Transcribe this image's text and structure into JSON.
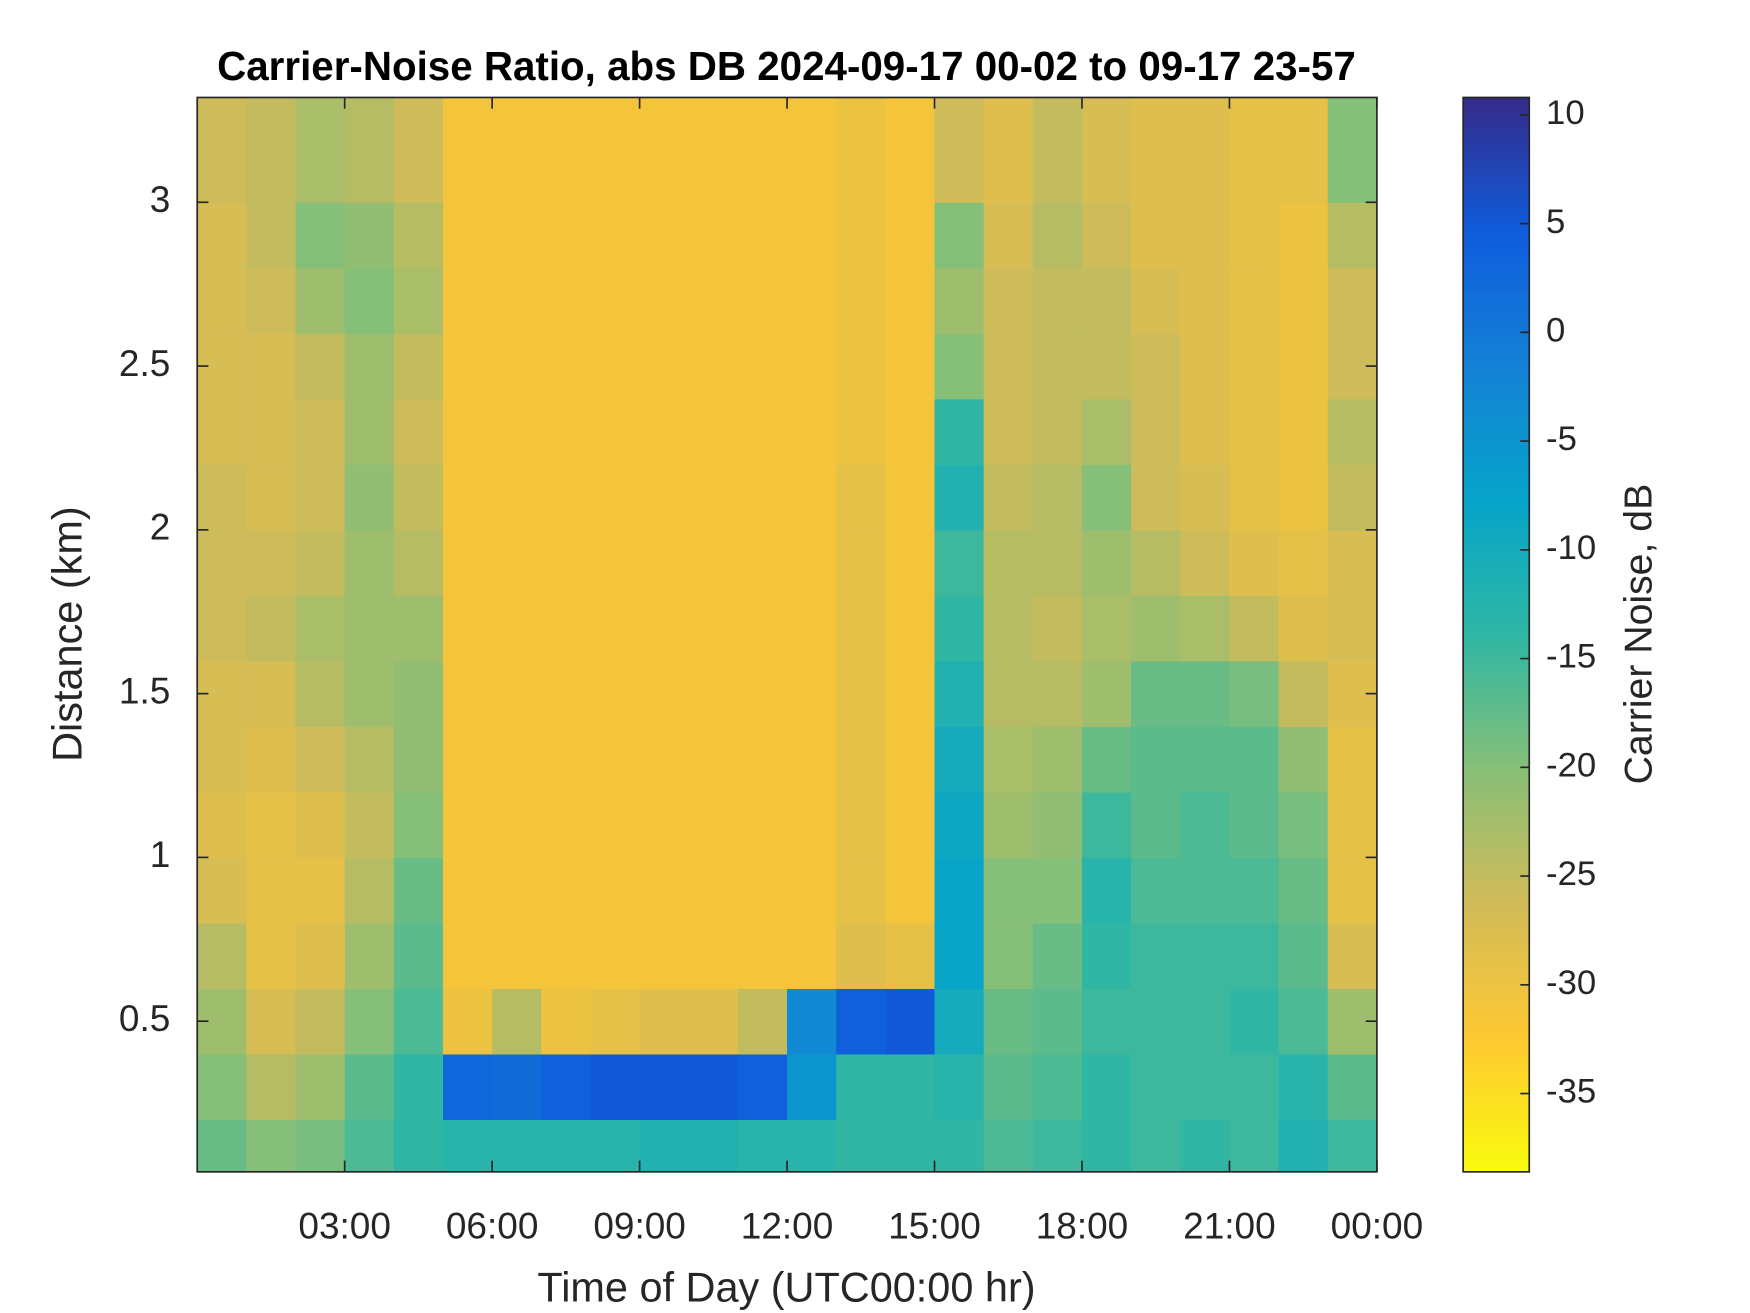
{
  "chart_data": {
    "type": "heatmap",
    "title": "Carrier-Noise Ratio, abs DB 2024-09-17 00-02 to 09-17 23-57",
    "x_label": "Time of Day (UTC00:00 hr)",
    "y_label": "Distance (km)",
    "colorbar_label": "Carrier Noise, dB",
    "xlim": [
      0,
      24
    ],
    "ylim": [
      0.04,
      3.32
    ],
    "clim": [
      -38.6,
      10.8
    ],
    "xticks": [
      {
        "value": 3,
        "label": "03:00"
      },
      {
        "value": 6,
        "label": "06:00"
      },
      {
        "value": 9,
        "label": "09:00"
      },
      {
        "value": 12,
        "label": "12:00"
      },
      {
        "value": 15,
        "label": "15:00"
      },
      {
        "value": 18,
        "label": "18:00"
      },
      {
        "value": 21,
        "label": "21:00"
      },
      {
        "value": 24,
        "label": "00:00"
      }
    ],
    "yticks": [
      0.5,
      1,
      1.5,
      2,
      2.5,
      3
    ],
    "cticks": [
      -35,
      -30,
      -25,
      -20,
      -15,
      -10,
      -5,
      0,
      5,
      10
    ],
    "colormap": [
      "#f9fb0e",
      "#fec832",
      "#d1bb59",
      "#87bf77",
      "#2eb7a4",
      "#06a4ca",
      "#1481d6",
      "#0f5cdd",
      "#352a87"
    ],
    "x_edges": [
      0,
      1,
      2,
      3,
      4,
      5,
      6,
      7,
      8,
      9,
      10,
      11,
      12,
      13,
      14,
      15,
      16,
      17,
      18,
      19,
      20,
      21,
      22,
      23,
      24
    ],
    "y_edges": [
      0.04,
      0.2,
      0.4,
      0.6,
      0.8,
      1.0,
      1.2,
      1.4,
      1.6,
      1.8,
      2.0,
      2.2,
      2.4,
      2.6,
      2.8,
      3.0,
      3.32
    ],
    "z": [
      [
        -18,
        -20,
        -22,
        -24,
        -27,
        -28,
        -27,
        -27,
        -26,
        -26,
        -26,
        -27,
        -27,
        -27,
        -27,
        -26
      ],
      [
        -20,
        -24,
        -27,
        -29,
        -29,
        -29,
        -28,
        -27,
        -25,
        -26,
        -27,
        -27,
        -27,
        -26,
        -25,
        -25
      ],
      [
        -19,
        -22,
        -25,
        -28,
        -29,
        -28,
        -26,
        -24,
        -23,
        -25,
        -26,
        -26,
        -25,
        -22,
        -20,
        -23
      ],
      [
        -16,
        -17,
        -20,
        -22,
        -24,
        -25,
        -24,
        -22,
        -22,
        -22,
        -21,
        -22,
        -22,
        -20,
        -21,
        -24
      ],
      [
        -14,
        -14,
        -16,
        -17,
        -18,
        -20,
        -21,
        -21,
        -22,
        -24,
        -25,
        -26,
        -25,
        -23,
        -24,
        -26
      ],
      [
        -13,
        3,
        -30,
        -31,
        -31,
        -31,
        -31,
        -31,
        -31,
        -31,
        -31,
        -31,
        -31,
        -31,
        -31,
        -31
      ],
      [
        -13,
        2,
        -24,
        -31,
        -31,
        -31,
        -31,
        -31,
        -31,
        -31,
        -31,
        -31,
        -31,
        -31,
        -31,
        -31
      ],
      [
        -13,
        4,
        -30,
        -31,
        -31,
        -31,
        -31,
        -31,
        -31,
        -31,
        -31,
        -31,
        -31,
        -31,
        -31,
        -31
      ],
      [
        -13,
        5,
        -29,
        -31,
        -31,
        -31,
        -31,
        -31,
        -31,
        -31,
        -31,
        -31,
        -31,
        -31,
        -31,
        -31
      ],
      [
        -12,
        5,
        -28,
        -31,
        -31,
        -31,
        -31,
        -31,
        -31,
        -31,
        -31,
        -31,
        -31,
        -31,
        -31,
        -31
      ],
      [
        -12,
        5,
        -28,
        -31,
        -31,
        -31,
        -31,
        -31,
        -31,
        -31,
        -31,
        -31,
        -31,
        -31,
        -31,
        -31
      ],
      [
        -13,
        4,
        -25,
        -31,
        -31,
        -31,
        -31,
        -31,
        -31,
        -31,
        -31,
        -31,
        -31,
        -31,
        -31,
        -31
      ],
      [
        -13,
        -5,
        -3,
        -31,
        -31,
        -31,
        -31,
        -31,
        -31,
        -31,
        -31,
        -31,
        -31,
        -31,
        -31,
        -31
      ],
      [
        -14,
        -14,
        4,
        -28,
        -29,
        -29,
        -29,
        -29,
        -29,
        -29,
        -29,
        -30,
        -30,
        -30,
        -30,
        -30
      ],
      [
        -14,
        -14,
        5,
        -29,
        -31,
        -31,
        -31,
        -31,
        -31,
        -31,
        -31,
        -31,
        -31,
        -31,
        -31,
        -31
      ],
      [
        -14,
        -13,
        -10,
        -8,
        -8,
        -9,
        -10,
        -12,
        -14,
        -15,
        -12,
        -14,
        -20,
        -22,
        -20,
        -26
      ],
      [
        -16,
        -17,
        -18,
        -20,
        -20,
        -22,
        -23,
        -24,
        -24,
        -24,
        -25,
        -26,
        -26,
        -26,
        -27,
        -28
      ],
      [
        -15,
        -16,
        -17,
        -18,
        -20,
        -21,
        -22,
        -24,
        -25,
        -24,
        -24,
        -25,
        -25,
        -25,
        -24,
        -25
      ],
      [
        -14,
        -14,
        -15,
        -14,
        -13,
        -15,
        -18,
        -22,
        -23,
        -22,
        -20,
        -23,
        -25,
        -25,
        -26,
        -27
      ],
      [
        -15,
        -15,
        -15,
        -15,
        -16,
        -17,
        -17,
        -18,
        -22,
        -24,
        -26,
        -26,
        -26,
        -27,
        -28,
        -28
      ],
      [
        -14,
        -15,
        -15,
        -15,
        -16,
        -16,
        -17,
        -18,
        -23,
        -26,
        -27,
        -28,
        -28,
        -28,
        -28,
        -28
      ],
      [
        -15,
        -15,
        -14,
        -15,
        -16,
        -17,
        -17,
        -19,
        -25,
        -28,
        -29,
        -29,
        -29,
        -29,
        -29,
        -29
      ],
      [
        -12,
        -13,
        -16,
        -17,
        -18,
        -19,
        -21,
        -25,
        -28,
        -29,
        -30,
        -30,
        -30,
        -30,
        -30,
        -29
      ],
      [
        -15,
        -17,
        -22,
        -27,
        -29,
        -29,
        -29,
        -28,
        -27,
        -27,
        -25,
        -24,
        -26,
        -26,
        -24,
        -20
      ]
    ]
  }
}
